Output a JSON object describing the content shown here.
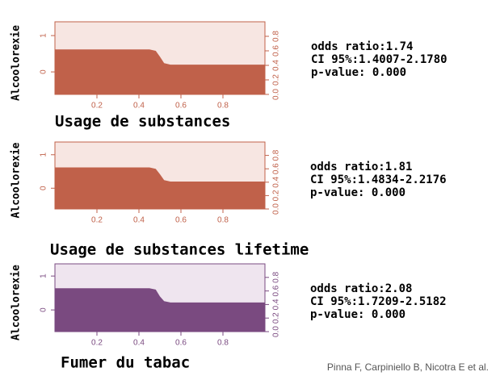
{
  "chart_data": [
    {
      "type": "area",
      "title": "Usage de substances",
      "ylabel": "Alcoolorexie",
      "categories": [
        "0",
        "1"
      ],
      "x": [
        0,
        0.45,
        0.48,
        0.5,
        0.52,
        0.55,
        1
      ],
      "values": [
        0.62,
        0.62,
        0.6,
        0.52,
        0.43,
        0.41,
        0.41
      ],
      "xlim": [
        0,
        1
      ],
      "xticks": [
        0.2,
        0.4,
        0.6,
        0.8
      ],
      "ylim": [
        0,
        1
      ],
      "yticks": [
        {
          "value": 0,
          "label": "0.0"
        },
        0.2,
        0.4,
        0.6,
        0.8
      ],
      "color": "#c0614a",
      "background": "#f7e6e2",
      "annotations": [
        "odds ratio:1.74",
        "CI 95%:1.4007-2.1780",
        "p-value: 0.000"
      ]
    },
    {
      "type": "area",
      "title": "Usage de substances lifetime",
      "ylabel": "Alcoolorexie",
      "categories": [
        "0",
        "1"
      ],
      "x": [
        0,
        0.45,
        0.48,
        0.5,
        0.52,
        0.55,
        1
      ],
      "values": [
        0.62,
        0.62,
        0.6,
        0.52,
        0.43,
        0.41,
        0.41
      ],
      "xlim": [
        0,
        1
      ],
      "xticks": [
        0.2,
        0.4,
        0.6,
        0.8
      ],
      "ylim": [
        0,
        1
      ],
      "yticks": [
        {
          "value": 0,
          "label": "0.0"
        },
        0.2,
        0.4,
        0.6,
        0.8
      ],
      "color": "#c0614a",
      "background": "#f7e6e2",
      "annotations": [
        "odds ratio:1.81",
        "CI 95%:1.4834-2.2176",
        "p-value: 0.000"
      ]
    },
    {
      "type": "area",
      "title": "Fumer du tabac",
      "ylabel": "Alcoolorexie",
      "categories": [
        "0",
        "1"
      ],
      "x": [
        0,
        0.45,
        0.48,
        0.5,
        0.52,
        0.55,
        1
      ],
      "values": [
        0.64,
        0.64,
        0.62,
        0.52,
        0.45,
        0.43,
        0.43
      ],
      "xlim": [
        0,
        1
      ],
      "xticks": [
        0.2,
        0.4,
        0.6,
        0.8
      ],
      "ylim": [
        0,
        1
      ],
      "yticks": [
        {
          "value": 0,
          "label": "0.0"
        },
        0.2,
        0.4,
        0.6,
        0.8
      ],
      "color": "#7a4a80",
      "background": "#efe5ef",
      "annotations": [
        "odds ratio:2.08",
        "CI 95%:1.7209-2.5182",
        "p-value: 0.000"
      ]
    }
  ],
  "footer": "Pinna F, Carpiniello B, Nicotra E et al."
}
